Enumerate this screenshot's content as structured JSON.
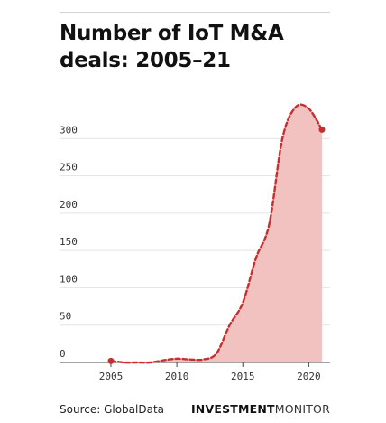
{
  "title": "Number of IoT M&A deals: 2005–21",
  "source": "Source: GlobalData",
  "brand": {
    "bold": "INVESTMENT",
    "regular": "MONITOR"
  },
  "colors": {
    "line": "#c62f2f",
    "fill": "#f2c2c0",
    "grid": "#e3e3e3",
    "axis": "#444444"
  },
  "chart_data": {
    "type": "area",
    "title": "Number of IoT M&A deals: 2005–21",
    "xlabel": "",
    "ylabel": "",
    "x": [
      2005,
      2006,
      2007,
      2008,
      2009,
      2010,
      2011,
      2012,
      2013,
      2014,
      2015,
      2016,
      2017,
      2018,
      2019,
      2020,
      2021
    ],
    "series": [
      {
        "values": [
          2,
          0,
          0,
          0,
          3,
          5,
          4,
          4,
          12,
          50,
          80,
          140,
          185,
          300,
          342,
          340,
          312
        ]
      }
    ],
    "xticks": [
      2005,
      2010,
      2015,
      2020
    ],
    "yticks": [
      0,
      50,
      100,
      150,
      200,
      250,
      300
    ],
    "xlim": [
      2005,
      2021
    ],
    "ylim": [
      0,
      350
    ],
    "grid": "horizontal",
    "line_style": "dashed",
    "endpoint_markers": true
  }
}
